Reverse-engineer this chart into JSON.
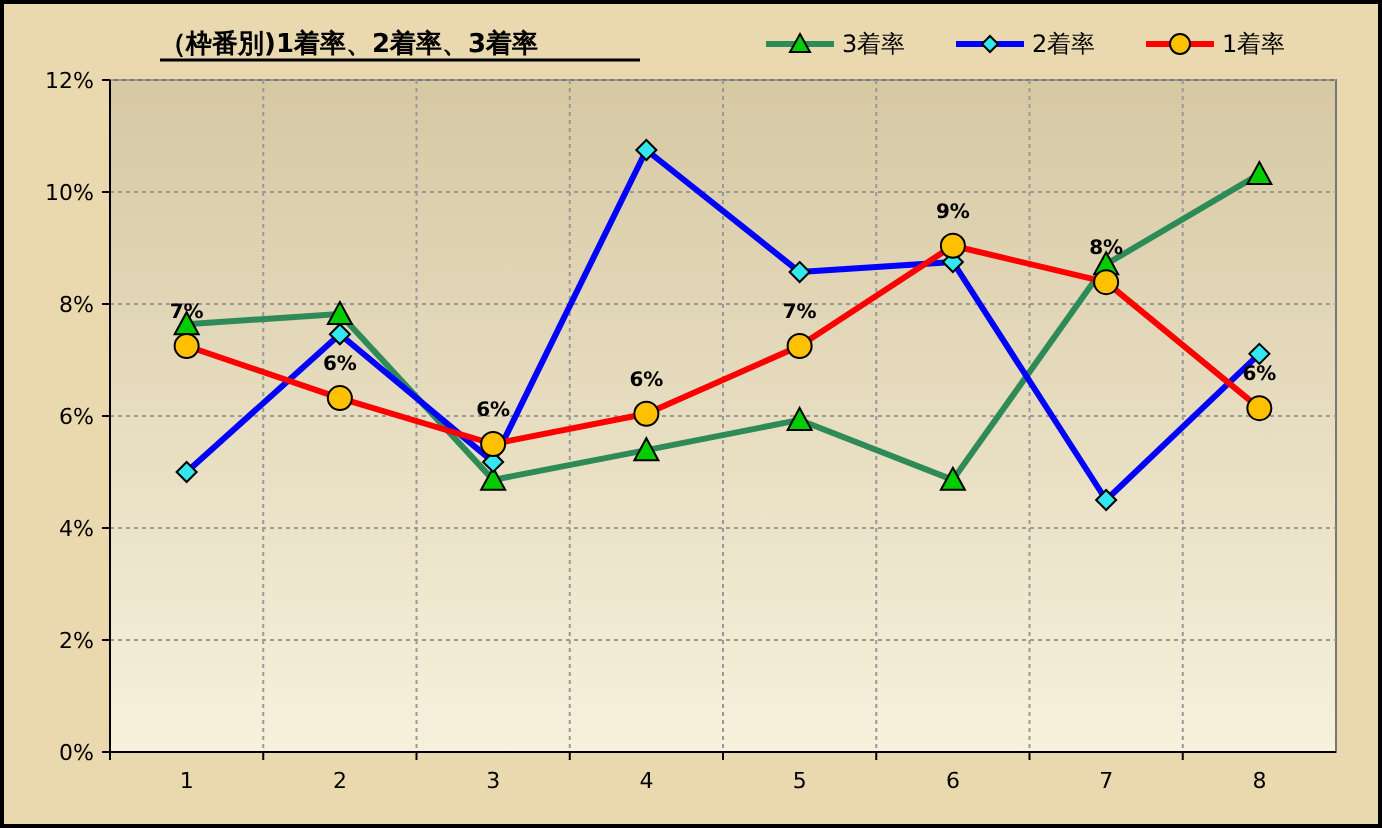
{
  "chart_data": {
    "type": "line",
    "title": "（枠番別)1着率、2着率、3着率",
    "categories": [
      "1",
      "2",
      "3",
      "4",
      "5",
      "6",
      "7",
      "8"
    ],
    "series": [
      {
        "name": "3着率",
        "color": "#2e8b57",
        "marker": "triangle",
        "values": [
          7.64,
          7.82,
          4.86,
          5.39,
          5.93,
          4.86,
          8.71,
          10.32
        ]
      },
      {
        "name": "2着率",
        "color": "#0000ff",
        "marker": "diamond",
        "values": [
          5.0,
          7.46,
          5.18,
          10.75,
          8.57,
          8.75,
          4.5,
          7.11
        ]
      },
      {
        "name": "1着率",
        "color": "#ff0000",
        "marker": "circle",
        "values": [
          7.25,
          6.32,
          5.5,
          6.04,
          7.25,
          9.04,
          8.39,
          6.14
        ],
        "value_labels": [
          "7%",
          "6%",
          "6%",
          "6%",
          "7%",
          "9%",
          "8%",
          "6%"
        ]
      }
    ],
    "ylim": [
      0,
      12
    ],
    "yticks": [
      {
        "value": 0,
        "label": "0%"
      },
      {
        "value": 2,
        "label": "2%"
      },
      {
        "value": 4,
        "label": "4%"
      },
      {
        "value": 6,
        "label": "6%"
      },
      {
        "value": 8,
        "label": "8%"
      },
      {
        "value": 10,
        "label": "10%"
      },
      {
        "value": 12,
        "label": "12%"
      }
    ],
    "grid": true,
    "legend": "top right",
    "line_style": "solid"
  }
}
